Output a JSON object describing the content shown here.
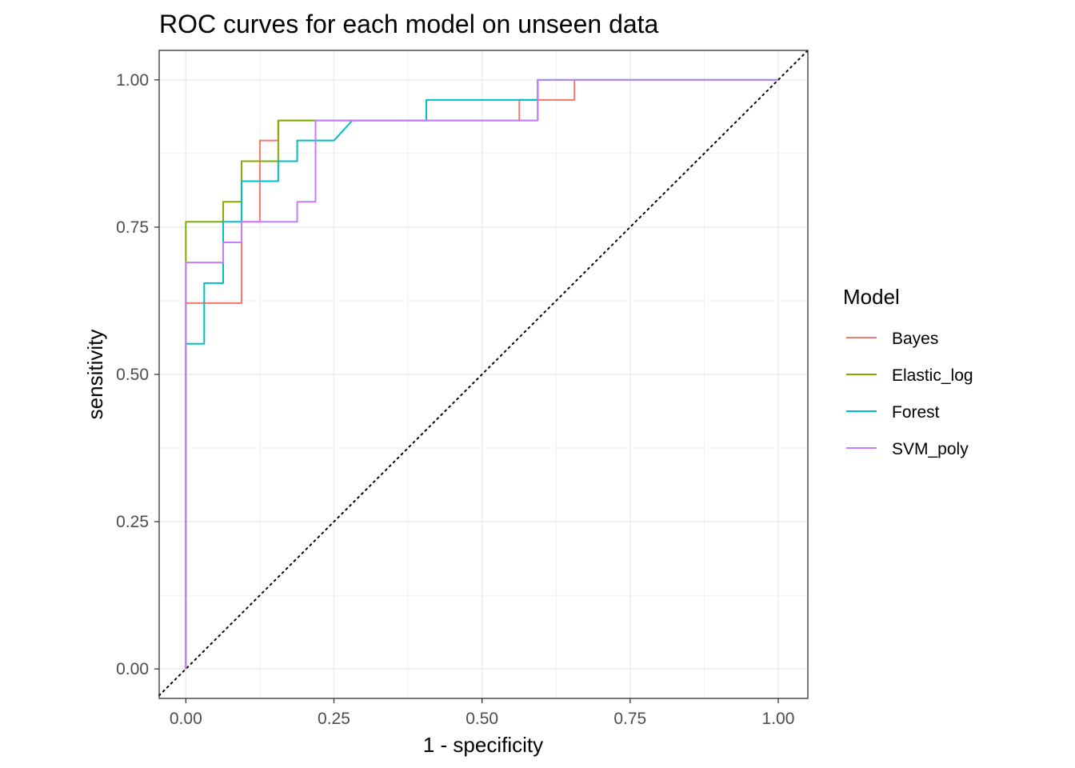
{
  "chart_data": {
    "type": "line",
    "title": "ROC curves for each model on unseen data",
    "xlabel": "1 - specificity",
    "ylabel": "sensitivity",
    "xlim": [
      -0.045,
      1.05
    ],
    "ylim": [
      -0.05,
      1.05
    ],
    "x_ticks": [
      0,
      0.25,
      0.5,
      0.75,
      1
    ],
    "x_tick_labels": [
      "0.00",
      "0.25",
      "0.50",
      "0.75",
      "1.00"
    ],
    "y_ticks": [
      0,
      0.25,
      0.5,
      0.75,
      1
    ],
    "y_tick_labels": [
      "0.00",
      "0.25",
      "0.50",
      "0.75",
      "1.00"
    ],
    "grid": true,
    "legend": {
      "title": "Model",
      "placement": "right"
    },
    "reference_line": {
      "from": [
        0,
        0
      ],
      "to": [
        1,
        1
      ],
      "style": "dotted",
      "color": "#000000"
    },
    "series": [
      {
        "name": "Bayes",
        "color": "#F8766D",
        "x": [
          0,
          0,
          0.031,
          0.031,
          0.094,
          0.094,
          0.125,
          0.125,
          0.156,
          0.156,
          0.219,
          0.219,
          0.563,
          0.563,
          0.594,
          0.594,
          0.656,
          0.656,
          1
        ],
        "y": [
          0,
          0.621,
          0.621,
          0.621,
          0.621,
          0.759,
          0.759,
          0.897,
          0.897,
          0.931,
          0.931,
          0.931,
          0.931,
          0.966,
          0.966,
          0.966,
          0.966,
          1,
          1
        ]
      },
      {
        "name": "Elastic_log",
        "color": "#7CAE00",
        "x": [
          0,
          0,
          0.063,
          0.063,
          0.094,
          0.094,
          0.156,
          0.156,
          0.219,
          0.594,
          0.594,
          1
        ],
        "y": [
          0,
          0.759,
          0.759,
          0.793,
          0.793,
          0.862,
          0.862,
          0.931,
          0.931,
          0.931,
          1,
          1
        ]
      },
      {
        "name": "Forest",
        "color": "#00BFC4",
        "x": [
          0,
          0,
          0.031,
          0.031,
          0.063,
          0.063,
          0.094,
          0.094,
          0.156,
          0.156,
          0.188,
          0.188,
          0.25,
          0.281,
          0.406,
          0.406,
          0.594,
          0.594,
          1
        ],
        "y": [
          0,
          0.552,
          0.552,
          0.655,
          0.655,
          0.759,
          0.759,
          0.828,
          0.828,
          0.862,
          0.862,
          0.897,
          0.897,
          0.931,
          0.931,
          0.966,
          0.966,
          1,
          1
        ]
      },
      {
        "name": "SVM_poly",
        "color": "#C77CFF",
        "x": [
          0,
          0,
          0.063,
          0.063,
          0.094,
          0.094,
          0.188,
          0.188,
          0.219,
          0.219,
          0.594,
          0.594,
          1
        ],
        "y": [
          0,
          0.69,
          0.69,
          0.724,
          0.724,
          0.759,
          0.759,
          0.793,
          0.793,
          0.931,
          0.931,
          1,
          1
        ]
      }
    ]
  }
}
